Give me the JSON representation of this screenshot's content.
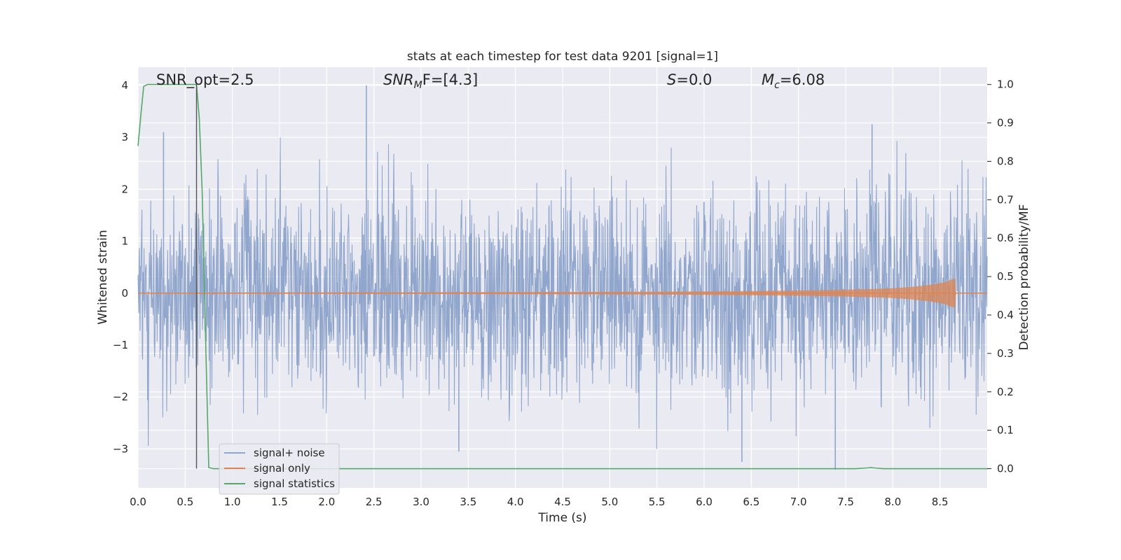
{
  "chart_data": {
    "type": "line",
    "title": "stats at each timestep for test data 9201 [signal=1]",
    "xlabel": "Time (s)",
    "ylabel_left": "Whitened strain",
    "ylabel_right": "Detection probability/MF",
    "xlim": [
      0.0,
      9.0
    ],
    "ylim_left": [
      -3.75,
      4.35
    ],
    "ylim_right": [
      -0.05,
      1.045
    ],
    "xticks": [
      "0.0",
      "0.5",
      "1.0",
      "1.5",
      "2.0",
      "2.5",
      "3.0",
      "3.5",
      "4.0",
      "4.5",
      "5.0",
      "5.5",
      "6.0",
      "6.5",
      "7.0",
      "7.5",
      "8.0",
      "8.5"
    ],
    "yticks_left": [
      "4",
      "3",
      "2",
      "1",
      "0",
      "−1",
      "−2",
      "−3"
    ],
    "yticks_right": [
      "1.0",
      "0.9",
      "0.8",
      "0.7",
      "0.6",
      "0.5",
      "0.4",
      "0.3",
      "0.2",
      "0.1",
      "0.0"
    ],
    "grid": true,
    "legend_position": "bottom-left",
    "annotations": {
      "snr_opt": "SNR_opt=2.5",
      "snr_mf_sym": "SNR",
      "snr_mf_sub": "M",
      "snr_mf_rest": "F=[4.3]",
      "s_sym": "S",
      "s_rest": "=0.0",
      "mc_sym": "M",
      "mc_sub": "c",
      "mc_rest": "=6.08"
    },
    "vertical_marker_x": 0.62,
    "series": [
      {
        "name": "signal+ noise",
        "color": "#91a6cc",
        "axis": "left",
        "description_values": {
          "approx_range": [
            -3.4,
            4.0
          ],
          "notable_peaks": [
            [
              0.27,
              3.1
            ],
            [
              2.42,
              4.0
            ],
            [
              7.78,
              3.25
            ],
            [
              7.39,
              -3.4
            ],
            [
              3.4,
              -3.05
            ],
            [
              6.4,
              -3.25
            ]
          ]
        }
      },
      {
        "name": "signal only",
        "color": "#dd8452",
        "axis": "left",
        "envelope": {
          "x": [
            0.0,
            1.0,
            2.0,
            3.0,
            4.0,
            5.0,
            5.5,
            6.0,
            6.5,
            7.0,
            7.5,
            7.8,
            8.0,
            8.2,
            8.4,
            8.55,
            8.62,
            8.66,
            8.67,
            9.0
          ],
          "amp": [
            0.01,
            0.012,
            0.014,
            0.016,
            0.019,
            0.024,
            0.028,
            0.033,
            0.04,
            0.05,
            0.065,
            0.08,
            0.095,
            0.12,
            0.16,
            0.21,
            0.26,
            0.28,
            0.0,
            0.0
          ]
        }
      },
      {
        "name": "signal statistics",
        "color": "#55a868",
        "axis": "right",
        "x": [
          0.0,
          0.03,
          0.06,
          0.1,
          0.2,
          0.3,
          0.4,
          0.5,
          0.58,
          0.62,
          0.65,
          0.68,
          0.7,
          0.73,
          0.75,
          0.8,
          1.0,
          2.0,
          4.0,
          6.0,
          7.0,
          7.6,
          7.73,
          7.77,
          7.8,
          7.9,
          8.5,
          9.0
        ],
        "y": [
          0.84,
          0.92,
          0.995,
          1.0,
          1.0,
          1.0,
          1.0,
          1.0,
          1.0,
          1.0,
          0.91,
          0.72,
          0.5,
          0.2,
          0.003,
          0.0,
          0.0,
          0.0,
          0.0,
          0.0,
          0.0,
          0.0,
          0.002,
          0.003,
          0.002,
          0.0,
          0.0,
          0.0
        ]
      }
    ]
  },
  "colors": {
    "axes_bg": "#eaeaf2",
    "grid": "#ffffff",
    "vertical_marker": "#555555"
  }
}
